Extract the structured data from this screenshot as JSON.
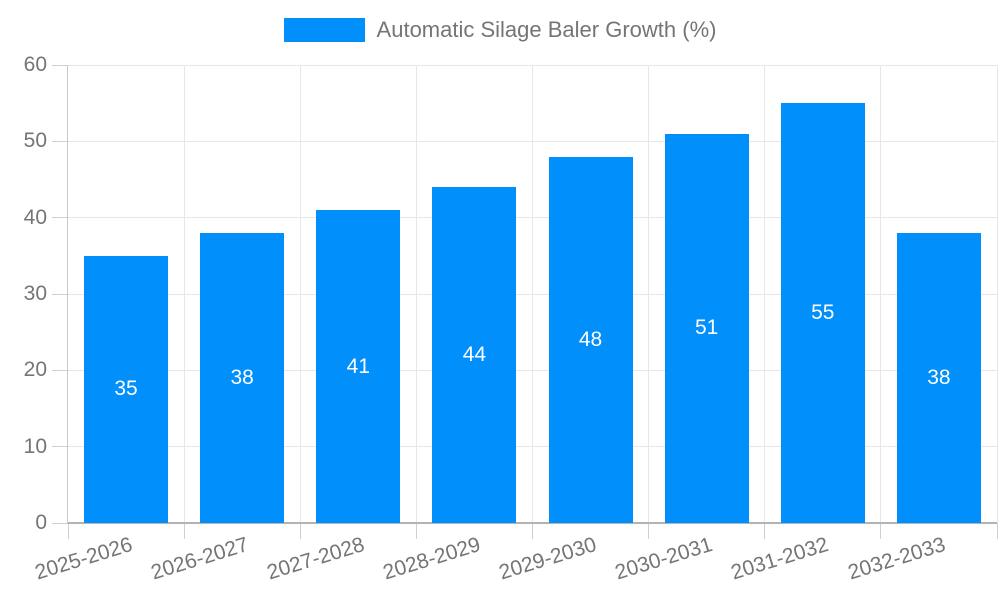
{
  "legend": {
    "items": [
      {
        "label": "Automatic Silage Baler Growth (%)",
        "color": "#008FFB"
      }
    ]
  },
  "chart_data": {
    "type": "bar",
    "title": "Automatic Silage Baler Growth (%)",
    "categories": [
      "2025-2026",
      "2026-2027",
      "2027-2028",
      "2028-2029",
      "2029-2030",
      "2030-2031",
      "2031-2032",
      "2032-2033"
    ],
    "values": [
      35,
      38,
      41,
      44,
      48,
      51,
      55,
      38
    ],
    "xlabel": "",
    "ylabel": "",
    "ylim": [
      0,
      60
    ],
    "yticks": [
      0,
      10,
      20,
      30,
      40,
      50,
      60
    ],
    "grid": true,
    "legend_position": "top-center",
    "bar_color": "#008FFB",
    "value_label_color": "#FFFFFF",
    "tick_label_color": "#757575",
    "grid_color": "#E7E7E7",
    "tick_mark_color": "#CFCFCF",
    "y_axis_line_color": "#C9C9C9",
    "x_axis_line_color": "#B3B3B3"
  }
}
